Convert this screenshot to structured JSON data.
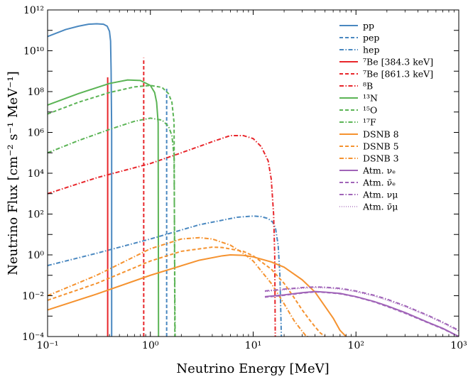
{
  "chart_data": {
    "type": "line",
    "xlabel": "Neutrino Energy [MeV]",
    "ylabel": "Neutrino Flux [cm⁻² s⁻¹ MeV⁻¹]",
    "xscale": "log",
    "yscale": "log",
    "xlim": [
      0.1,
      1000
    ],
    "ylim": [
      0.0001,
      1000000000000
    ],
    "x_tick_labels": [
      "10⁻¹",
      "10⁰",
      "10¹",
      "10²",
      "10³"
    ],
    "y_tick_labels": [
      "10⁻⁴",
      "10⁻²",
      "10⁰",
      "10²",
      "10⁴",
      "10⁶",
      "10⁸",
      "10¹⁰",
      "10¹²"
    ],
    "legend_position": "upper right",
    "colors": {
      "blue": "#4a88c0",
      "red": "#e8262b",
      "green": "#5bb455",
      "orange": "#f5922f",
      "purple": "#a064b8"
    },
    "series": [
      {
        "name": "pp",
        "color": "#4a88c0",
        "dash": "solid",
        "x": [
          0.1,
          0.15,
          0.2,
          0.25,
          0.3,
          0.35,
          0.38,
          0.4,
          0.41,
          0.415,
          0.42,
          0.42
        ],
        "y": [
          50000000000.0,
          110000000000.0,
          160000000000.0,
          200000000000.0,
          210000000000.0,
          200000000000.0,
          160000000000.0,
          90000000000.0,
          30000000000.0,
          1000000000.0,
          1000000.0,
          0.0001
        ]
      },
      {
        "name": "pep",
        "color": "#4a88c0",
        "dash": "dashed",
        "x": [
          1.44,
          1.44
        ],
        "y": [
          0.0001,
          150000000.0
        ]
      },
      {
        "name": "hep",
        "color": "#4a88c0",
        "dash": "dashdot",
        "x": [
          0.1,
          0.3,
          1,
          3,
          7,
          10,
          12,
          14,
          15.5,
          16.5,
          17.5,
          18.2,
          18.6,
          18.8
        ],
        "y": [
          0.3,
          1.2,
          6,
          30,
          70,
          80,
          75,
          60,
          40,
          20,
          3,
          0.1,
          0.001,
          0.0001
        ]
      },
      {
        "name": "⁷Be [384.3 keV]",
        "color": "#e8262b",
        "dash": "solid",
        "x": [
          0.3843,
          0.3843
        ],
        "y": [
          0.0001,
          500000000.0
        ]
      },
      {
        "name": "⁷Be [861.3 keV]",
        "color": "#e8262b",
        "dash": "dashed",
        "x": [
          0.8613,
          0.8613
        ],
        "y": [
          0.0001,
          4500000000.0
        ]
      },
      {
        "name": "⁸B",
        "color": "#e8262b",
        "dash": "dashdot",
        "x": [
          0.1,
          0.3,
          1,
          2,
          4,
          6,
          8,
          10,
          12,
          14,
          15,
          15.8,
          16.2,
          16.4
        ],
        "y": [
          1000,
          6000,
          30000,
          100000,
          350000,
          700000,
          700000,
          500000,
          200000,
          40000,
          5000,
          100,
          1,
          0.0001
        ]
      },
      {
        "name": "¹³N",
        "color": "#5bb455",
        "dash": "solid",
        "x": [
          0.1,
          0.2,
          0.4,
          0.6,
          0.8,
          1,
          1.1,
          1.15,
          1.19,
          1.2
        ],
        "y": [
          22000000.0,
          80000000.0,
          250000000.0,
          370000000.0,
          350000000.0,
          200000000.0,
          90000000.0,
          30000000.0,
          3000000.0,
          0.0001
        ]
      },
      {
        "name": "¹⁵O",
        "color": "#5bb455",
        "dash": "dashed",
        "x": [
          0.1,
          0.2,
          0.4,
          0.7,
          1,
          1.3,
          1.5,
          1.62,
          1.7,
          1.73
        ],
        "y": [
          8000000.0,
          30000000.0,
          90000000.0,
          170000000.0,
          200000000.0,
          160000000.0,
          80000000.0,
          30000000.0,
          3000000.0,
          0.0001
        ]
      },
      {
        "name": "¹⁷F",
        "color": "#5bb455",
        "dash": "dashdot",
        "x": [
          0.1,
          0.2,
          0.4,
          0.7,
          1,
          1.3,
          1.5,
          1.62,
          1.7,
          1.74
        ],
        "y": [
          100000.0,
          400000.0,
          1400000.0,
          3500000.0,
          5000000.0,
          4000000.0,
          2000000.0,
          700000.0,
          70000.0,
          0.0001
        ]
      },
      {
        "name": "DSNB 8",
        "color": "#f5922f",
        "dash": "solid",
        "x": [
          0.1,
          0.3,
          1,
          3,
          5,
          6,
          8,
          10,
          15,
          20,
          30,
          40,
          50,
          60,
          70,
          80
        ],
        "y": [
          0.002,
          0.012,
          0.1,
          0.55,
          0.9,
          1,
          0.95,
          0.8,
          0.45,
          0.25,
          0.06,
          0.015,
          0.003,
          0.0008,
          0.0002,
          0.0001
        ]
      },
      {
        "name": "DSNB 5",
        "color": "#f5922f",
        "dash": "dashed",
        "x": [
          0.1,
          0.3,
          1,
          2,
          4,
          5,
          8,
          10,
          15,
          20,
          25,
          30,
          35,
          40,
          45,
          50
        ],
        "y": [
          0.006,
          0.04,
          0.5,
          1.5,
          2.4,
          2.3,
          1.5,
          0.9,
          0.2,
          0.04,
          0.008,
          0.002,
          0.0007,
          0.0003,
          0.00015,
          0.0001
        ]
      },
      {
        "name": "DSNB 3",
        "color": "#f5922f",
        "dash": "dashdot",
        "x": [
          0.1,
          0.3,
          1,
          2,
          3,
          4,
          6,
          8,
          10,
          15,
          20,
          25,
          30,
          33,
          35
        ],
        "y": [
          0.01,
          0.1,
          2,
          6,
          7,
          6,
          3,
          1.2,
          0.5,
          0.04,
          0.004,
          0.0006,
          0.00018,
          0.0001,
          0.0001
        ]
      },
      {
        "name": "Atm. νₑ",
        "color": "#a064b8",
        "dash": "solid",
        "x": [
          13,
          20,
          30,
          40,
          50,
          70,
          100,
          150,
          200,
          300,
          500,
          700,
          1000
        ],
        "y": [
          0.009,
          0.011,
          0.014,
          0.016,
          0.015,
          0.013,
          0.009,
          0.0052,
          0.0032,
          0.0015,
          0.0005,
          0.00025,
          0.0001
        ]
      },
      {
        "name": "Atm. ν̄ₑ",
        "color": "#a064b8",
        "dash": "dashed",
        "x": [
          13,
          20,
          30,
          40,
          50,
          70,
          100,
          150,
          200,
          300,
          500,
          700,
          1000
        ],
        "y": [
          0.0085,
          0.0105,
          0.0135,
          0.0155,
          0.0145,
          0.0125,
          0.0088,
          0.005,
          0.003,
          0.0014,
          0.00048,
          0.00024,
          0.0001
        ]
      },
      {
        "name": "Atm. νμ",
        "color": "#a064b8",
        "dash": "dashdot",
        "x": [
          13,
          20,
          30,
          40,
          50,
          70,
          100,
          150,
          200,
          300,
          500,
          700,
          1000
        ],
        "y": [
          0.017,
          0.021,
          0.025,
          0.027,
          0.026,
          0.023,
          0.017,
          0.0105,
          0.0068,
          0.0032,
          0.0011,
          0.0005,
          0.0002
        ]
      },
      {
        "name": "Atm. ν̄μ",
        "color": "#a064b8",
        "dash": "dotted",
        "x": [
          13,
          20,
          30,
          40,
          50,
          70,
          100,
          150,
          200,
          300,
          500,
          700,
          1000
        ],
        "y": [
          0.016,
          0.0195,
          0.023,
          0.025,
          0.024,
          0.021,
          0.0155,
          0.0095,
          0.006,
          0.0029,
          0.001,
          0.00045,
          0.00018
        ]
      }
    ]
  }
}
